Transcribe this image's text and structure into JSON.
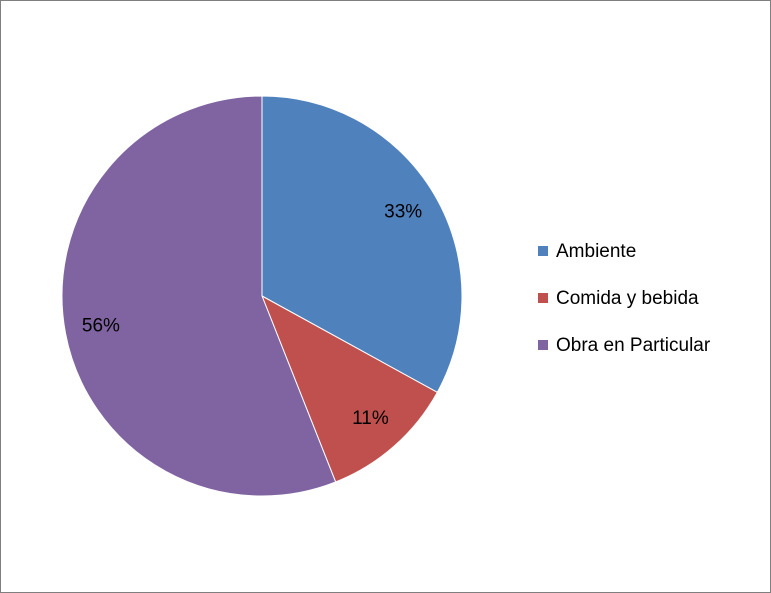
{
  "chart_data": {
    "type": "pie",
    "categories": [
      "Ambiente",
      "Comida y bebida",
      "Obra en Particular"
    ],
    "values": [
      33,
      11,
      56
    ],
    "value_labels": [
      "33%",
      "11%",
      "56%"
    ],
    "colors": [
      "#4f81bd",
      "#c0504d",
      "#8064a2"
    ],
    "legend": "right"
  }
}
